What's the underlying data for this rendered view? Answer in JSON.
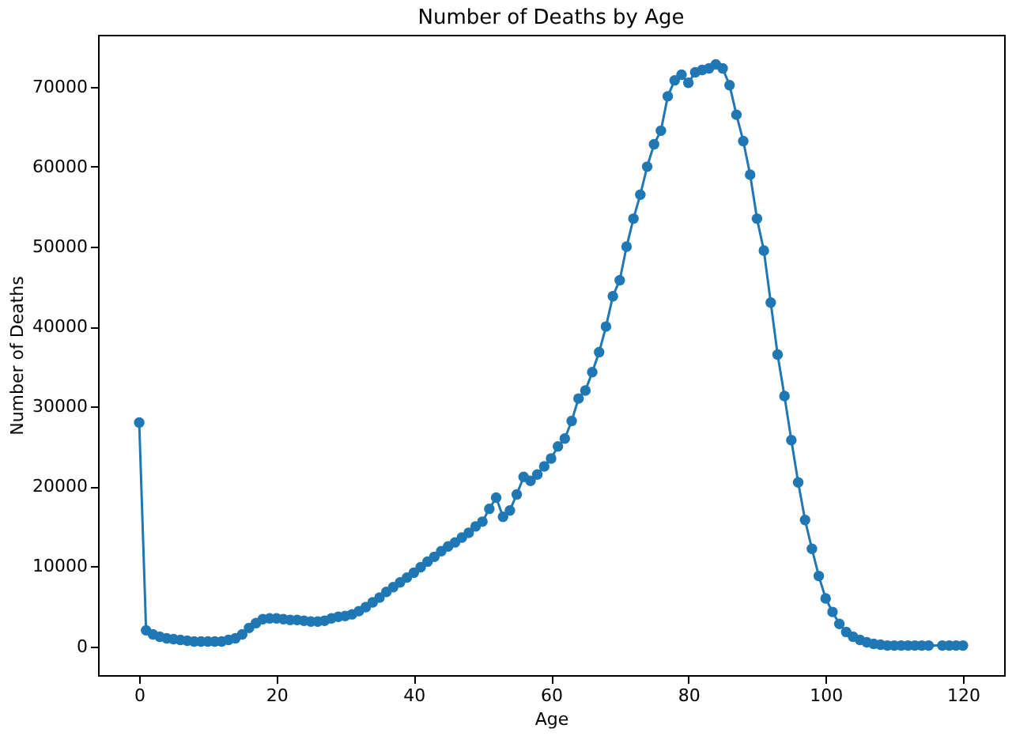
{
  "chart_data": {
    "type": "line",
    "title": "Number of Deaths by Age",
    "xlabel": "Age",
    "ylabel": "Number of Deaths",
    "x": [
      0,
      1,
      2,
      3,
      4,
      5,
      6,
      7,
      8,
      9,
      10,
      11,
      12,
      13,
      14,
      15,
      16,
      17,
      18,
      19,
      20,
      21,
      22,
      23,
      24,
      25,
      26,
      27,
      28,
      29,
      30,
      31,
      32,
      33,
      34,
      35,
      36,
      37,
      38,
      39,
      40,
      41,
      42,
      43,
      44,
      45,
      46,
      47,
      48,
      49,
      50,
      51,
      52,
      53,
      54,
      55,
      56,
      57,
      58,
      59,
      60,
      61,
      62,
      63,
      64,
      65,
      66,
      67,
      68,
      69,
      70,
      71,
      72,
      73,
      74,
      75,
      76,
      77,
      78,
      79,
      80,
      81,
      82,
      83,
      84,
      85,
      86,
      87,
      88,
      89,
      90,
      91,
      92,
      93,
      94,
      95,
      96,
      97,
      98,
      99,
      100,
      101,
      102,
      103,
      104,
      105,
      106,
      107,
      108,
      109,
      110,
      111,
      112,
      113,
      114,
      115,
      117,
      118,
      119,
      120
    ],
    "series": [
      {
        "color": "#1f77b4",
        "values": [
          28000,
          2000,
          1500,
          1200,
          1000,
          900,
          800,
          700,
          600,
          600,
          600,
          600,
          600,
          800,
          1000,
          1500,
          2300,
          2900,
          3400,
          3500,
          3500,
          3400,
          3300,
          3300,
          3200,
          3100,
          3100,
          3200,
          3500,
          3700,
          3800,
          4000,
          4400,
          4900,
          5500,
          6100,
          6800,
          7400,
          8000,
          8600,
          9200,
          9900,
          10600,
          11200,
          11900,
          12500,
          13000,
          13600,
          14200,
          15000,
          15600,
          17200,
          18600,
          16200,
          17000,
          19000,
          21200,
          20700,
          21500,
          22500,
          23500,
          25000,
          26000,
          28200,
          31000,
          32000,
          34300,
          36800,
          40000,
          43800,
          45800,
          50000,
          53500,
          56500,
          60000,
          62800,
          64500,
          68800,
          70800,
          71500,
          70500,
          71800,
          72100,
          72300,
          72800,
          72300,
          70200,
          66500,
          63200,
          59000,
          53500,
          49500,
          43000,
          36500,
          31300,
          25800,
          20500,
          15800,
          12200,
          8800,
          6000,
          4300,
          2800,
          1800,
          1200,
          800,
          500,
          300,
          200,
          100,
          100,
          100,
          100,
          100,
          100,
          100,
          100,
          100,
          100,
          100
        ]
      }
    ],
    "xlim": [
      -6,
      126
    ],
    "xticks": [
      0,
      20,
      40,
      60,
      80,
      100,
      120
    ],
    "ylim": [
      -3600,
      76500
    ],
    "yticks": [
      0,
      10000,
      20000,
      30000,
      40000,
      50000,
      60000,
      70000
    ],
    "marker": "circle",
    "line_style": "solid",
    "grid": false
  }
}
